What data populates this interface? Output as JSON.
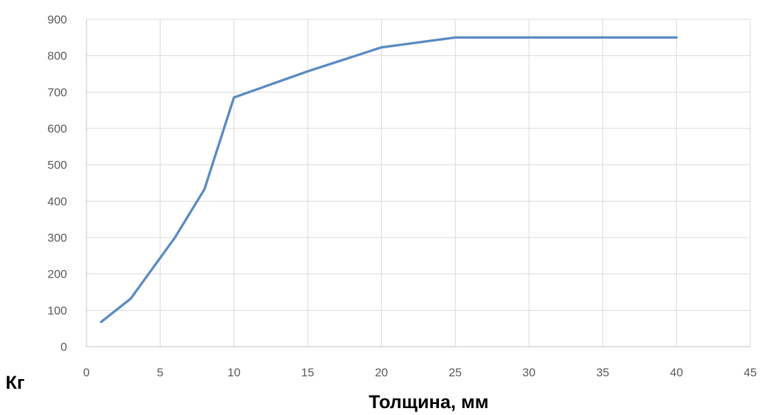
{
  "chart_data": {
    "type": "line",
    "title": "",
    "xlabel": "Толщина, мм",
    "ylabel": "Кг",
    "xlim": [
      0,
      45
    ],
    "ylim": [
      0,
      900
    ],
    "x_ticks": [
      0,
      5,
      10,
      15,
      20,
      25,
      30,
      35,
      40,
      45
    ],
    "y_ticks": [
      0,
      100,
      200,
      300,
      400,
      500,
      600,
      700,
      800,
      900
    ],
    "grid": true,
    "legend": "none",
    "series": [
      {
        "color": "#5b8bc2",
        "x": [
          1,
          3,
          6,
          8,
          10,
          15,
          20,
          25,
          30,
          35,
          40
        ],
        "y": [
          68,
          132,
          300,
          433,
          685,
          757,
          823,
          850,
          850,
          850,
          850
        ]
      }
    ]
  }
}
